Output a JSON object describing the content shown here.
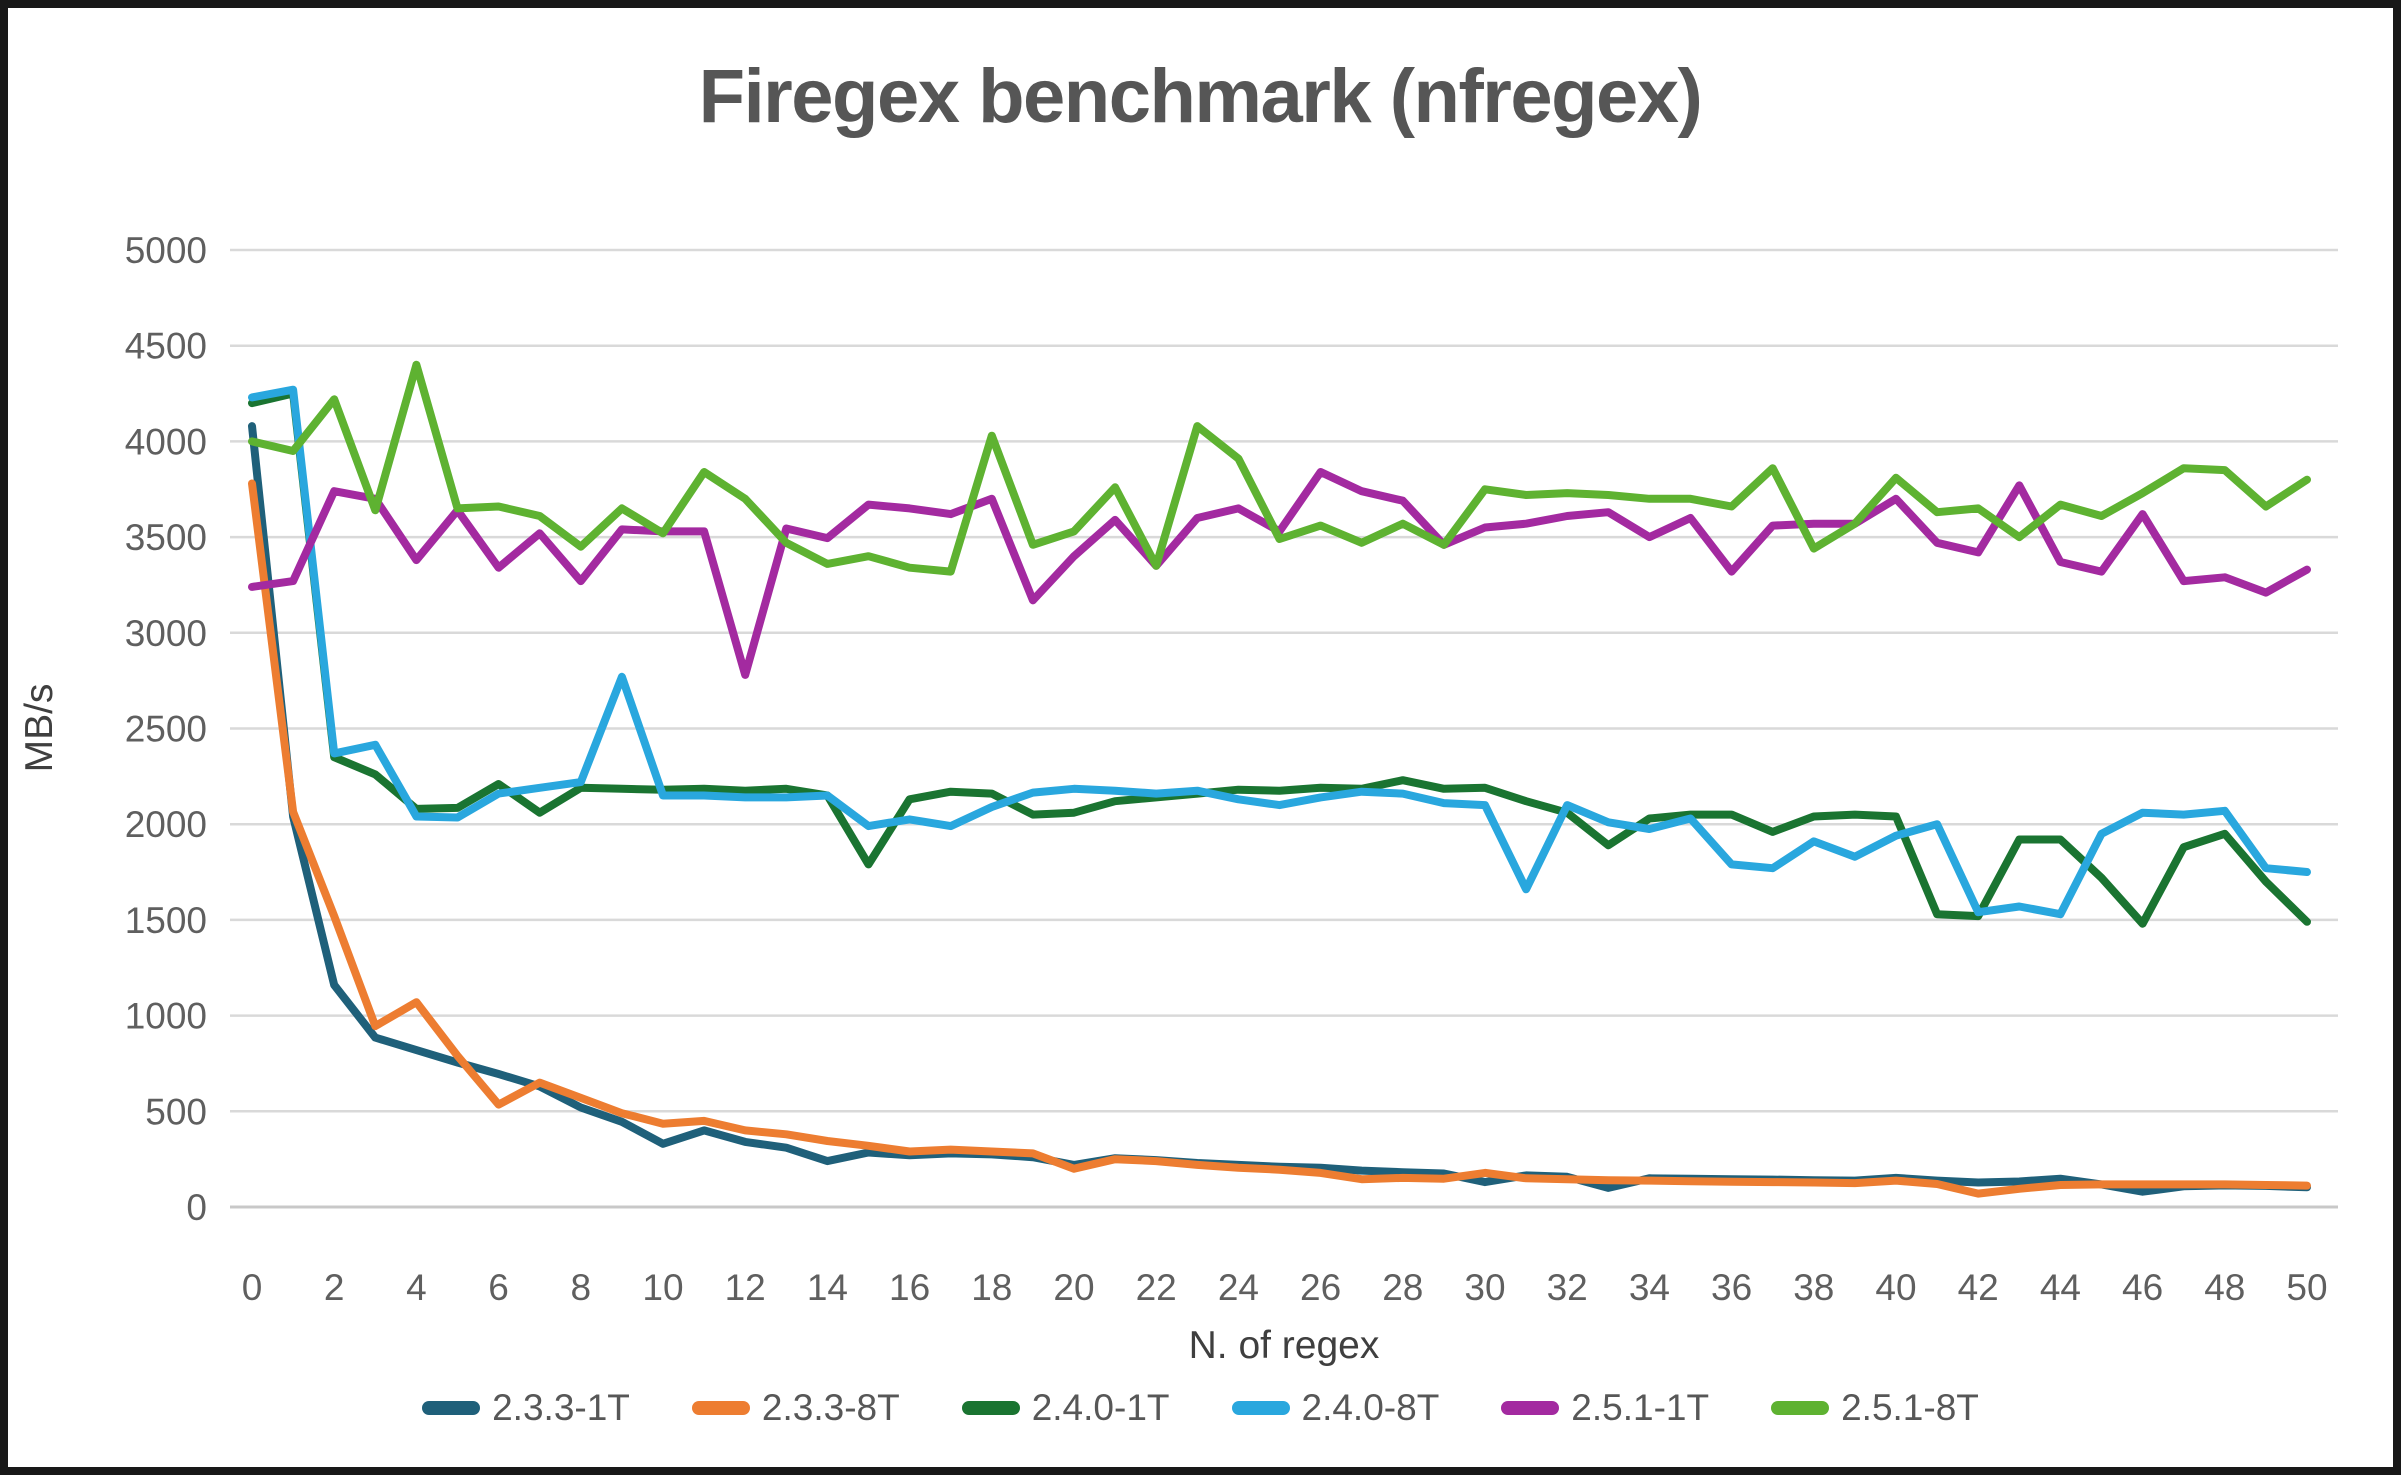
{
  "title": {
    "text": "Firegex benchmark (nfregex)",
    "color": "#565656"
  },
  "frame": {
    "border_color": "#181818",
    "background": "#ffffff"
  },
  "grid": {
    "line_color": "#d9d9d9",
    "zero_line_color": "#c8c8c8"
  },
  "tick_label_color": "#5f5f5f",
  "chart_data": {
    "type": "line",
    "title": "Firegex benchmark (nfregex)",
    "xlabel": "N. of regex",
    "ylabel": "MB/s",
    "xlim": [
      0,
      50
    ],
    "ylim": [
      0,
      5000
    ],
    "y_tick_step": 500,
    "x_tick_step": 2,
    "grid": true,
    "legend_position": "bottom",
    "x": [
      0,
      1,
      2,
      3,
      4,
      5,
      6,
      7,
      8,
      9,
      10,
      11,
      12,
      13,
      14,
      15,
      16,
      17,
      18,
      19,
      20,
      21,
      22,
      23,
      24,
      25,
      26,
      27,
      28,
      29,
      30,
      31,
      32,
      33,
      34,
      35,
      36,
      37,
      38,
      39,
      40,
      41,
      42,
      43,
      44,
      45,
      46,
      47,
      48,
      49,
      50
    ],
    "series": [
      {
        "name": "2.3.3-1T",
        "color": "#1f607a",
        "values": [
          4080,
          2040,
          1160,
          885,
          820,
          755,
          695,
          630,
          520,
          445,
          330,
          400,
          340,
          310,
          240,
          285,
          270,
          280,
          275,
          260,
          220,
          255,
          245,
          230,
          220,
          210,
          205,
          190,
          182,
          175,
          130,
          165,
          158,
          100,
          150,
          148,
          145,
          143,
          140,
          138,
          152,
          138,
          128,
          133,
          148,
          118,
          80,
          108,
          113,
          110,
          103
        ]
      },
      {
        "name": "2.3.3-8T",
        "color": "#ed7d31",
        "values": [
          3780,
          2065,
          1520,
          945,
          1070,
          790,
          535,
          650,
          570,
          490,
          435,
          450,
          400,
          380,
          345,
          320,
          290,
          300,
          290,
          280,
          200,
          250,
          240,
          220,
          205,
          195,
          178,
          145,
          152,
          148,
          178,
          150,
          145,
          140,
          138,
          135,
          132,
          130,
          128,
          125,
          138,
          120,
          70,
          95,
          115,
          118,
          118,
          118,
          118,
          115,
          112
        ]
      },
      {
        "name": "2.4.0-1T",
        "color": "#1a7431",
        "values": [
          4200,
          4250,
          2350,
          2260,
          2080,
          2085,
          2210,
          2060,
          2190,
          2185,
          2180,
          2185,
          2175,
          2185,
          2150,
          1790,
          2130,
          2170,
          2160,
          2050,
          2060,
          2120,
          2140,
          2160,
          2180,
          2175,
          2190,
          2185,
          2230,
          2185,
          2190,
          2120,
          2060,
          1890,
          2030,
          2050,
          2050,
          1960,
          2040,
          2050,
          2040,
          1530,
          1520,
          1920,
          1920,
          1720,
          1480,
          1880,
          1950,
          1700,
          1490
        ]
      },
      {
        "name": "2.4.0-8T",
        "color": "#29a7de",
        "values": [
          4230,
          4270,
          2370,
          2415,
          2040,
          2035,
          2160,
          2190,
          2220,
          2770,
          2150,
          2150,
          2140,
          2140,
          2150,
          1990,
          2025,
          1990,
          2090,
          2165,
          2185,
          2175,
          2160,
          2175,
          2130,
          2100,
          2140,
          2170,
          2160,
          2110,
          2100,
          1660,
          2100,
          2010,
          1975,
          2030,
          1790,
          1770,
          1910,
          1830,
          1940,
          2000,
          1540,
          1570,
          1530,
          1950,
          2060,
          2050,
          2070,
          1770,
          1750
        ]
      },
      {
        "name": "2.5.1-1T",
        "color": "#a32aa0",
        "values": [
          3240,
          3270,
          3740,
          3700,
          3380,
          3640,
          3340,
          3520,
          3270,
          3540,
          3530,
          3530,
          2780,
          3545,
          3495,
          3670,
          3650,
          3620,
          3700,
          3170,
          3400,
          3590,
          3350,
          3600,
          3650,
          3530,
          3840,
          3740,
          3690,
          3460,
          3550,
          3570,
          3610,
          3630,
          3500,
          3600,
          3320,
          3560,
          3570,
          3570,
          3700,
          3470,
          3420,
          3770,
          3370,
          3320,
          3620,
          3270,
          3290,
          3210,
          3330
        ]
      },
      {
        "name": "2.5.1-8T",
        "color": "#5eb231",
        "values": [
          4000,
          3950,
          4220,
          3640,
          4400,
          3650,
          3660,
          3610,
          3450,
          3650,
          3520,
          3840,
          3700,
          3470,
          3360,
          3400,
          3340,
          3320,
          4030,
          3460,
          3530,
          3760,
          3350,
          4080,
          3910,
          3490,
          3560,
          3470,
          3570,
          3460,
          3750,
          3720,
          3730,
          3720,
          3700,
          3700,
          3660,
          3860,
          3440,
          3570,
          3810,
          3630,
          3650,
          3500,
          3670,
          3610,
          3730,
          3860,
          3850,
          3660,
          3800
        ]
      }
    ]
  }
}
